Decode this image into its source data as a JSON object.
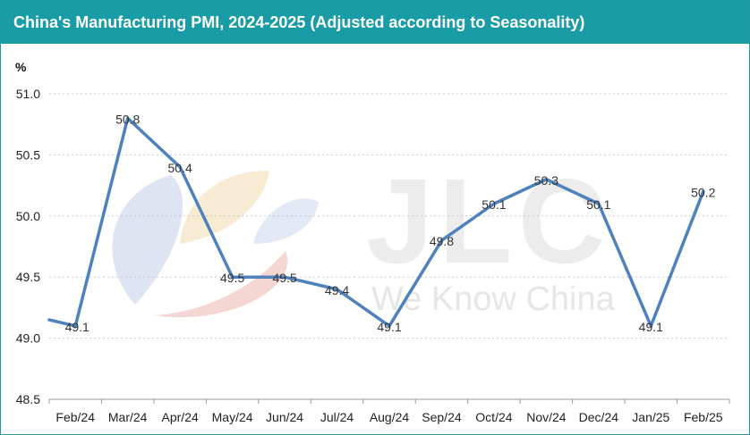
{
  "chart_data": {
    "type": "line",
    "title": "China's Manufacturing PMI, 2024-2025 (Adjusted according to Seasonality)",
    "ylabel": "%",
    "xlabel": "",
    "ylim": [
      48.5,
      51.0
    ],
    "yticks": [
      "48.5",
      "49.0",
      "49.5",
      "50.0",
      "50.5",
      "51.0"
    ],
    "categories": [
      "Feb/24",
      "Mar/24",
      "Apr/24",
      "May/24",
      "Jun/24",
      "Jul/24",
      "Aug/24",
      "Sep/24",
      "Oct/24",
      "Nov/24",
      "Dec/24",
      "Jan/25",
      "Feb/25"
    ],
    "series": [
      {
        "values": [
          49.1,
          50.8,
          50.4,
          49.5,
          49.5,
          49.4,
          49.1,
          49.8,
          50.1,
          50.3,
          50.1,
          49.1,
          50.2
        ]
      }
    ],
    "lead_in_value": 49.15,
    "data_labels": [
      "49.1",
      "50.8",
      "50.4",
      "49.5",
      "49.5",
      "49.4",
      "49.1",
      "49.8",
      "50.1",
      "50.3",
      "50.1",
      "49.1",
      "50.2"
    ],
    "grid": true,
    "line_color": "#4f81bd"
  },
  "watermark": {
    "logo_text": "JLC",
    "tagline": "We Know China"
  }
}
